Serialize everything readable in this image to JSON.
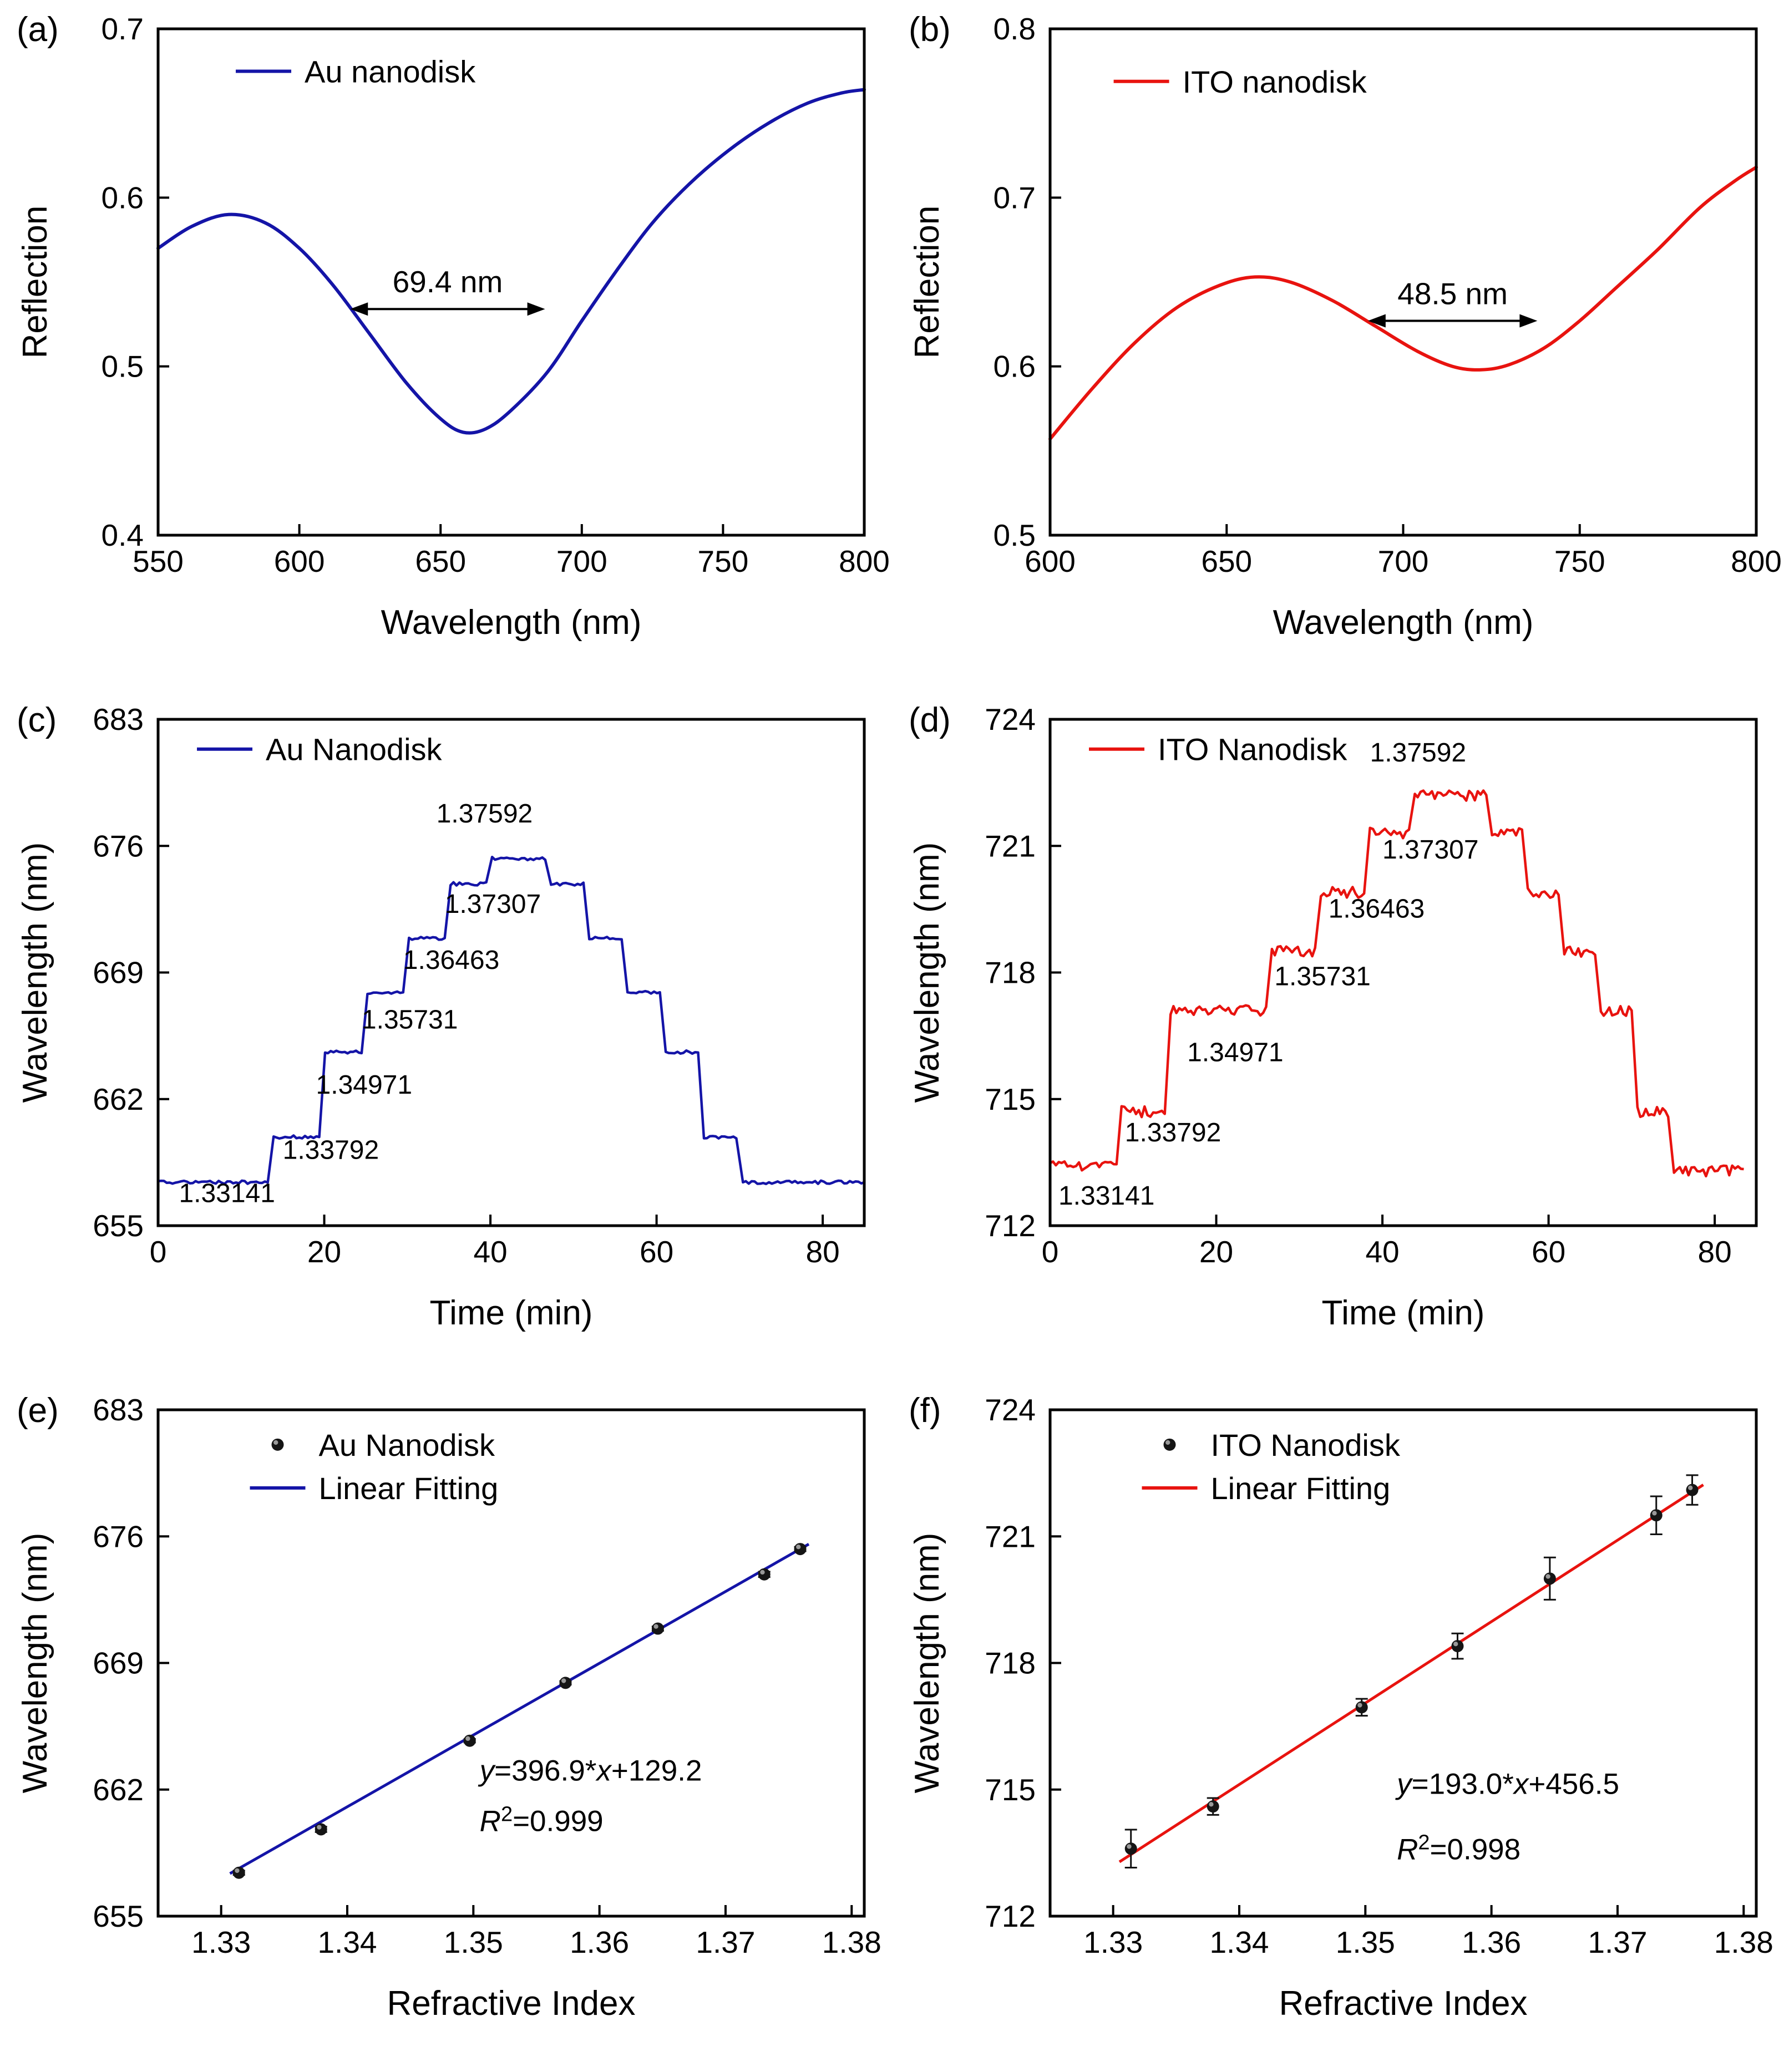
{
  "colors": {
    "au_blue": "#1414A7",
    "ito_red": "#E8130F",
    "marker_black": "#151515"
  },
  "chart_data": [
    {
      "id": "a",
      "letter": "(a)",
      "type": "line",
      "xlabel": "Wavelength (nm)",
      "ylabel": "Reflection",
      "xlim": [
        550,
        800
      ],
      "ylim": [
        0.4,
        0.7
      ],
      "xticks": {
        "values": [
          550,
          600,
          650,
          700,
          750,
          800
        ],
        "labels": [
          "550",
          "600",
          "650",
          "700",
          "750",
          "800"
        ]
      },
      "yticks": {
        "values": [
          0.4,
          0.5,
          0.6,
          0.7
        ],
        "labels": [
          "0.4",
          "0.5",
          "0.6",
          "0.7"
        ]
      },
      "legend": {
        "pos": [
          0.11,
          0.04
        ],
        "entries": [
          {
            "type": "line",
            "color": "#1414A7",
            "label": "Au nanodisk"
          }
        ]
      },
      "series": [
        {
          "type": "curve",
          "color": "#1414A7",
          "width": 6,
          "points": [
            [
              550,
              0.57
            ],
            [
              562,
              0.583
            ],
            [
              575,
              0.59
            ],
            [
              588,
              0.585
            ],
            [
              600,
              0.57
            ],
            [
              612,
              0.548
            ],
            [
              625,
              0.519
            ],
            [
              638,
              0.49
            ],
            [
              650,
              0.469
            ],
            [
              658,
              0.461
            ],
            [
              666,
              0.463
            ],
            [
              675,
              0.474
            ],
            [
              688,
              0.497
            ],
            [
              700,
              0.527
            ],
            [
              712,
              0.556
            ],
            [
              725,
              0.585
            ],
            [
              738,
              0.608
            ],
            [
              752,
              0.628
            ],
            [
              766,
              0.644
            ],
            [
              780,
              0.656
            ],
            [
              792,
              0.662
            ],
            [
              800,
              0.664
            ]
          ]
        }
      ],
      "annotations": [
        {
          "type": "width-arrow",
          "x1": 618,
          "x2": 687,
          "y": 0.534,
          "label": "69.4 nm"
        }
      ]
    },
    {
      "id": "b",
      "letter": "(b)",
      "type": "line",
      "xlabel": "Wavelength (nm)",
      "ylabel": "Reflection",
      "xlim": [
        600,
        800
      ],
      "ylim": [
        0.5,
        0.8
      ],
      "xticks": {
        "values": [
          600,
          650,
          700,
          750,
          800
        ],
        "labels": [
          "600",
          "650",
          "700",
          "750",
          "800"
        ]
      },
      "yticks": {
        "values": [
          0.5,
          0.6,
          0.7,
          0.8
        ],
        "labels": [
          "0.5",
          "0.6",
          "0.7",
          "0.8"
        ]
      },
      "legend": {
        "pos": [
          0.09,
          0.06
        ],
        "entries": [
          {
            "type": "line",
            "color": "#E8130F",
            "label": "ITO nanodisk"
          }
        ]
      },
      "series": [
        {
          "type": "curve",
          "color": "#E8130F",
          "width": 6,
          "points": [
            [
              600,
              0.557
            ],
            [
              612,
              0.587
            ],
            [
              624,
              0.614
            ],
            [
              636,
              0.635
            ],
            [
              648,
              0.648
            ],
            [
              658,
              0.653
            ],
            [
              668,
              0.65
            ],
            [
              680,
              0.639
            ],
            [
              692,
              0.624
            ],
            [
              704,
              0.609
            ],
            [
              714,
              0.6
            ],
            [
              722,
              0.598
            ],
            [
              730,
              0.601
            ],
            [
              740,
              0.611
            ],
            [
              750,
              0.627
            ],
            [
              760,
              0.646
            ],
            [
              772,
              0.669
            ],
            [
              784,
              0.694
            ],
            [
              794,
              0.71
            ],
            [
              800,
              0.718
            ]
          ]
        }
      ],
      "annotations": [
        {
          "type": "width-arrow",
          "x1": 690,
          "x2": 738,
          "y": 0.627,
          "label": "48.5 nm"
        }
      ]
    },
    {
      "id": "c",
      "letter": "(c)",
      "type": "steps",
      "xlabel": "Time (min)",
      "ylabel": "Wavelength (nm)",
      "xlim": [
        0,
        85
      ],
      "ylim": [
        655,
        683
      ],
      "xticks": {
        "values": [
          0,
          20,
          40,
          60,
          80
        ],
        "labels": [
          "0",
          "20",
          "40",
          "60",
          "80"
        ]
      },
      "yticks": {
        "values": [
          655,
          662,
          669,
          676,
          683
        ],
        "labels": [
          "655",
          "662",
          "669",
          "676",
          "683"
        ]
      },
      "legend": {
        "pos": [
          0.055,
          0.015
        ],
        "entries": [
          {
            "type": "line",
            "color": "#1414A7",
            "label": "Au Nanodisk"
          }
        ]
      },
      "series": [
        {
          "type": "steps",
          "color": "#1414A7",
          "width": 4.5,
          "noise": 0.09,
          "segments": [
            [
              0,
              13.2,
              657.4
            ],
            [
              13.9,
              19.4,
              659.9
            ],
            [
              20.1,
              24.5,
              664.6
            ],
            [
              25.2,
              29.5,
              667.9
            ],
            [
              30.2,
              34.5,
              670.9
            ],
            [
              35.2,
              39.5,
              673.9
            ],
            [
              40.2,
              46.6,
              675.3
            ],
            [
              47.3,
              51.2,
              673.9
            ],
            [
              51.9,
              55.8,
              670.9
            ],
            [
              56.5,
              60.4,
              667.9
            ],
            [
              61.1,
              65.0,
              664.6
            ],
            [
              65.7,
              69.6,
              659.9
            ],
            [
              70.4,
              85,
              657.4
            ]
          ]
        }
      ],
      "annotations": [
        {
          "type": "text",
          "x": 2.5,
          "y": 656.3,
          "label": "1.33141"
        },
        {
          "type": "text",
          "x": 15.0,
          "y": 658.7,
          "label": "1.33792"
        },
        {
          "type": "text",
          "x": 19.0,
          "y": 662.3,
          "label": "1.34971"
        },
        {
          "type": "text",
          "x": 24.5,
          "y": 665.9,
          "label": "1.35731"
        },
        {
          "type": "text",
          "x": 29.5,
          "y": 669.2,
          "label": "1.36463"
        },
        {
          "type": "text",
          "x": 34.5,
          "y": 672.3,
          "label": "1.37307"
        },
        {
          "type": "text",
          "x": 33.5,
          "y": 677.3,
          "label": "1.37592"
        }
      ]
    },
    {
      "id": "d",
      "letter": "(d)",
      "type": "steps",
      "xlabel": "Time (min)",
      "ylabel": "Wavelength (nm)",
      "xlim": [
        0,
        85
      ],
      "ylim": [
        712,
        724
      ],
      "xticks": {
        "values": [
          0,
          20,
          40,
          60,
          80
        ],
        "labels": [
          "0",
          "20",
          "40",
          "60",
          "80"
        ]
      },
      "yticks": {
        "values": [
          712,
          715,
          718,
          721,
          724
        ],
        "labels": [
          "712",
          "715",
          "718",
          "721",
          "724"
        ]
      },
      "legend": {
        "pos": [
          0.055,
          0.015
        ],
        "entries": [
          {
            "type": "line",
            "color": "#E8130F",
            "label": "ITO Nanodisk"
          }
        ]
      },
      "series": [
        {
          "type": "steps",
          "color": "#E8130F",
          "width": 4.5,
          "noise": 0.13,
          "segments": [
            [
              0,
              8,
              713.4
            ],
            [
              8.6,
              13.8,
              714.7
            ],
            [
              14.5,
              26.0,
              717.1
            ],
            [
              26.7,
              31.9,
              718.5
            ],
            [
              32.6,
              37.8,
              719.9
            ],
            [
              38.5,
              43.2,
              721.3
            ],
            [
              43.9,
              52.5,
              722.2
            ],
            [
              53.2,
              56.8,
              721.3
            ],
            [
              57.5,
              61.2,
              719.9
            ],
            [
              61.9,
              65.6,
              718.5
            ],
            [
              66.3,
              70.0,
              717.1
            ],
            [
              70.7,
              74.4,
              714.7
            ],
            [
              75.1,
              83.5,
              713.3
            ]
          ]
        }
      ],
      "annotations": [
        {
          "type": "text",
          "x": 1.0,
          "y": 712.5,
          "label": "1.33141"
        },
        {
          "type": "text",
          "x": 9.0,
          "y": 714.0,
          "label": "1.33792"
        },
        {
          "type": "text",
          "x": 16.5,
          "y": 715.9,
          "label": "1.34971"
        },
        {
          "type": "text",
          "x": 27.0,
          "y": 717.7,
          "label": "1.35731"
        },
        {
          "type": "text",
          "x": 33.5,
          "y": 719.3,
          "label": "1.36463"
        },
        {
          "type": "text",
          "x": 40.0,
          "y": 720.7,
          "label": "1.37307"
        },
        {
          "type": "text",
          "x": 38.5,
          "y": 723.0,
          "label": "1.37592"
        }
      ]
    },
    {
      "id": "e",
      "letter": "(e)",
      "type": "scatter-fit",
      "xlabel": "Refractive Index",
      "ylabel": "Wavelength (nm)",
      "xlim": [
        1.325,
        1.381
      ],
      "ylim": [
        655,
        683
      ],
      "xticks": {
        "values": [
          1.33,
          1.34,
          1.35,
          1.36,
          1.37,
          1.38
        ],
        "labels": [
          "1.33",
          "1.34",
          "1.35",
          "1.36",
          "1.37",
          "1.38"
        ]
      },
      "yticks": {
        "values": [
          655,
          662,
          669,
          676,
          683
        ],
        "labels": [
          "655",
          "662",
          "669",
          "676",
          "683"
        ]
      },
      "legend": {
        "pos": [
          0.13,
          0.025
        ],
        "entries": [
          {
            "type": "marker",
            "label": "Au Nanodisk"
          },
          {
            "type": "line",
            "color": "#1414A7",
            "label": "Linear Fitting"
          }
        ]
      },
      "series": [
        {
          "type": "fitline",
          "color": "#1414A7",
          "width": 5,
          "slope": 396.9,
          "intercept": 129.2,
          "xrange": [
            1.3307,
            1.3766
          ]
        },
        {
          "type": "scatter",
          "color": "#151515",
          "x": [
            1.33141,
            1.33792,
            1.34971,
            1.35731,
            1.36463,
            1.37307,
            1.37592
          ],
          "y": [
            657.4,
            659.8,
            664.7,
            667.9,
            670.9,
            673.9,
            675.3
          ],
          "yerr": [
            0.12,
            0.15,
            0.1,
            0.1,
            0.12,
            0.15,
            0.12
          ]
        }
      ],
      "annotations": [
        {
          "type": "eq",
          "x": 1.3505,
          "y": 662.5,
          "text": "y=396.9*x+129.2"
        },
        {
          "type": "r2",
          "x": 1.3505,
          "y": 659.7,
          "value": "0.999"
        }
      ]
    },
    {
      "id": "f",
      "letter": "(f)",
      "type": "scatter-fit",
      "xlabel": "Refractive Index",
      "ylabel": "Wavelength (nm)",
      "xlim": [
        1.325,
        1.381
      ],
      "ylim": [
        712,
        724
      ],
      "xticks": {
        "values": [
          1.33,
          1.34,
          1.35,
          1.36,
          1.37,
          1.38
        ],
        "labels": [
          "1.33",
          "1.34",
          "1.35",
          "1.36",
          "1.37",
          "1.38"
        ]
      },
      "yticks": {
        "values": [
          712,
          715,
          718,
          721,
          724
        ],
        "labels": [
          "712",
          "715",
          "718",
          "721",
          "724"
        ]
      },
      "legend": {
        "pos": [
          0.13,
          0.025
        ],
        "entries": [
          {
            "type": "marker",
            "label": "ITO Nanodisk"
          },
          {
            "type": "line",
            "color": "#E8130F",
            "label": "Linear Fitting"
          }
        ]
      },
      "series": [
        {
          "type": "fitline",
          "color": "#E8130F",
          "width": 5,
          "slope": 193.0,
          "intercept": 456.5,
          "xrange": [
            1.3305,
            1.3768
          ]
        },
        {
          "type": "scatter",
          "color": "#151515",
          "x": [
            1.33141,
            1.33792,
            1.34971,
            1.35731,
            1.36463,
            1.37307,
            1.37592
          ],
          "y": [
            713.6,
            714.6,
            716.95,
            718.4,
            720.0,
            721.5,
            722.1
          ],
          "yerr": [
            0.45,
            0.2,
            0.2,
            0.3,
            0.5,
            0.45,
            0.35
          ]
        }
      ],
      "annotations": [
        {
          "type": "eq",
          "x": 1.3525,
          "y": 714.9,
          "text": "y=193.0*x+456.5"
        },
        {
          "type": "r2",
          "x": 1.3525,
          "y": 713.35,
          "value": "0.998"
        }
      ]
    }
  ]
}
